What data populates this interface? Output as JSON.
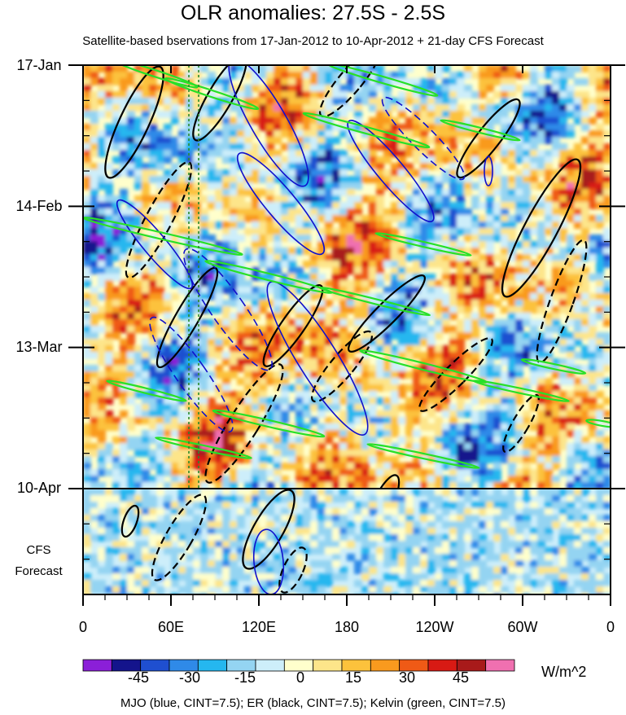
{
  "chart_data": {
    "type": "heatmap",
    "title": "OLR anomalies: 27.5S - 2.5S",
    "subtitle": "Satellite-based bservations from 17-Jan-2012 to 10-Apr-2012 + 21-day CFS Forecast",
    "x_tick_labels": [
      "0",
      "60E",
      "120E",
      "180",
      "120W",
      "60W",
      "0"
    ],
    "x_tick_values_deg_east": [
      0,
      60,
      120,
      180,
      240,
      300,
      360
    ],
    "y_tick_labels": [
      "17-Jan",
      "14-Feb",
      "13-Mar",
      "10-Apr"
    ],
    "y_tick_dates": [
      "2012-01-17",
      "2012-02-14",
      "2012-03-13",
      "2012-04-10"
    ],
    "observation_end": "2012-04-10",
    "forecast_end": "2012-05-01",
    "forecast_label": [
      "CFS",
      "Forecast"
    ],
    "colorbar": {
      "tick_labels": [
        "-45",
        "-30",
        "-15",
        "0",
        "15",
        "30",
        "45"
      ],
      "units": "W/m^2",
      "colors": [
        "#8b1fd8",
        "#14148c",
        "#1f4fd0",
        "#2f8ae8",
        "#25b7ef",
        "#94d4f2",
        "#cdeefa",
        "#ffffcc",
        "#fde58a",
        "#fcc23c",
        "#f99a1e",
        "#ef5a16",
        "#d81a14",
        "#a81a1a",
        "#f070b0"
      ]
    },
    "overlays": [
      {
        "name": "MJO",
        "color": "#1010cc",
        "cint": 7.5
      },
      {
        "name": "ER",
        "color": "#000000",
        "cint": 7.5
      },
      {
        "name": "Kelvin",
        "color": "#28e028",
        "cint": 7.5
      }
    ],
    "footer": "MJO (blue, CINT=7.5); ER (black, CINT=7.5); Kelvin (green, CINT=7.5)",
    "grid": false
  }
}
